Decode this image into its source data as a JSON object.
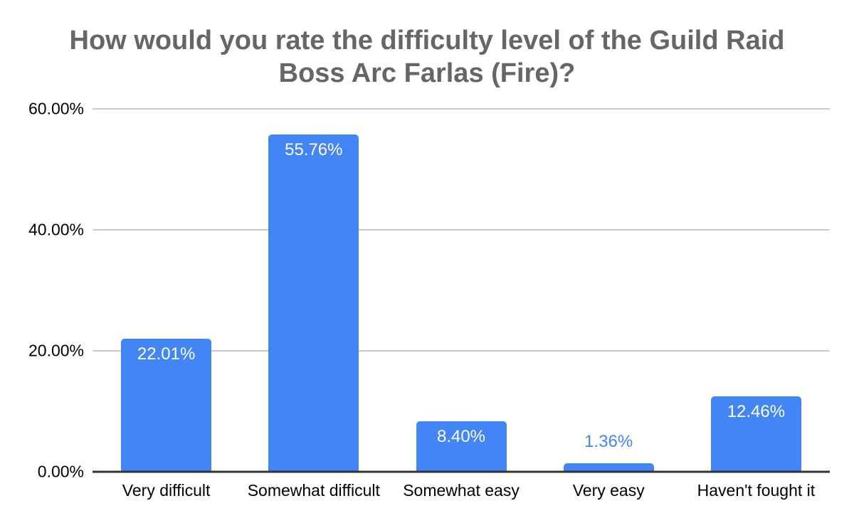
{
  "colors": {
    "background": "#ffffff",
    "bar": "#4285F4",
    "label_inside": "#ffffff",
    "label_outside": "#4285F4",
    "title": "#666666",
    "gridline": "#cccccc",
    "axis": "#333333",
    "tick_text": "#000000"
  },
  "chart_data": {
    "type": "bar",
    "title": "How would you rate the difficulty level of the Guild Raid Boss Arc Farlas (Fire)?",
    "xlabel": "",
    "ylabel": "",
    "categories": [
      "Very difficult",
      "Somewhat difficult",
      "Somewhat easy",
      "Very easy",
      "Haven't fought it"
    ],
    "values": [
      22.01,
      55.76,
      8.4,
      1.36,
      12.46
    ],
    "value_labels": [
      "22.01%",
      "55.76%",
      "8.40%",
      "1.36%",
      "12.46%"
    ],
    "value_label_positions": [
      "inside",
      "inside",
      "inside",
      "outside",
      "inside"
    ],
    "yticks": [
      {
        "value": 0,
        "label": "0.00%"
      },
      {
        "value": 20,
        "label": "20.00%"
      },
      {
        "value": 40,
        "label": "40.00%"
      },
      {
        "value": 60,
        "label": "60.00%"
      }
    ],
    "ylim": [
      0,
      60
    ],
    "grid": true,
    "legend": "none"
  }
}
